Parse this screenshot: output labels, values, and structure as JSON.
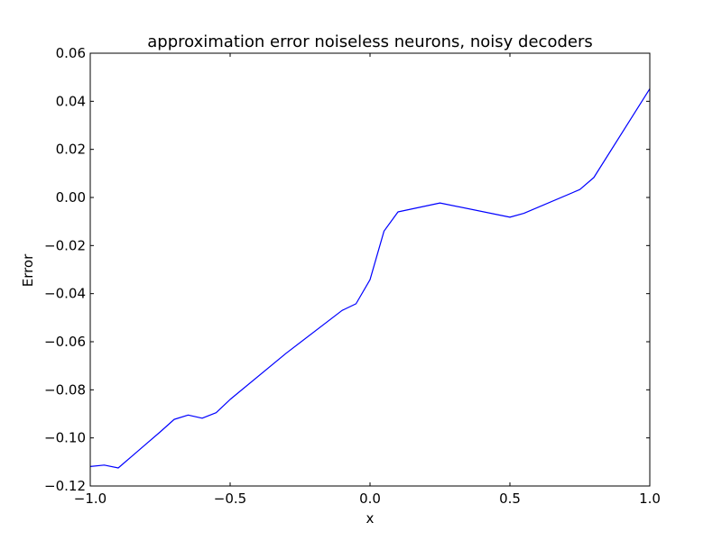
{
  "chart_data": {
    "type": "line",
    "title": "approximation error noiseless neurons, noisy decoders",
    "xlabel": "x",
    "ylabel": "Error",
    "xlim": [
      -1.0,
      1.0
    ],
    "ylim": [
      -0.12,
      0.06
    ],
    "grid": false,
    "x_ticks": [
      -1.0,
      -0.5,
      0.0,
      0.5,
      1.0
    ],
    "x_tick_labels": [
      "−1.0",
      "−0.5",
      "0.0",
      "0.5",
      "1.0"
    ],
    "y_ticks": [
      -0.12,
      -0.1,
      -0.08,
      -0.06,
      -0.04,
      -0.02,
      0.0,
      0.02,
      0.04,
      0.06
    ],
    "y_tick_labels": [
      "−0.12",
      "−0.10",
      "−0.08",
      "−0.06",
      "−0.04",
      "−0.02",
      "0.00",
      "0.02",
      "0.04",
      "0.06"
    ],
    "colors": {
      "line": "#0000ff",
      "axes": "#000000",
      "background": "#ffffff"
    },
    "series": [
      {
        "x": [
          -1.0,
          -0.95,
          -0.9,
          -0.85,
          -0.8,
          -0.75,
          -0.7,
          -0.65,
          -0.6,
          -0.55,
          -0.5,
          -0.3,
          -0.1,
          -0.05,
          0.0,
          0.05,
          0.1,
          0.25,
          0.5,
          0.55,
          0.75,
          0.8,
          1.0
        ],
        "y": [
          -0.1119,
          -0.1113,
          -0.1125,
          -0.1075,
          -0.1025,
          -0.0975,
          -0.0923,
          -0.0905,
          -0.0918,
          -0.0895,
          -0.084,
          -0.0648,
          -0.047,
          -0.0442,
          -0.0342,
          -0.014,
          -0.006,
          -0.0023,
          -0.0082,
          -0.0066,
          0.0033,
          0.0083,
          0.0452
        ]
      }
    ]
  }
}
